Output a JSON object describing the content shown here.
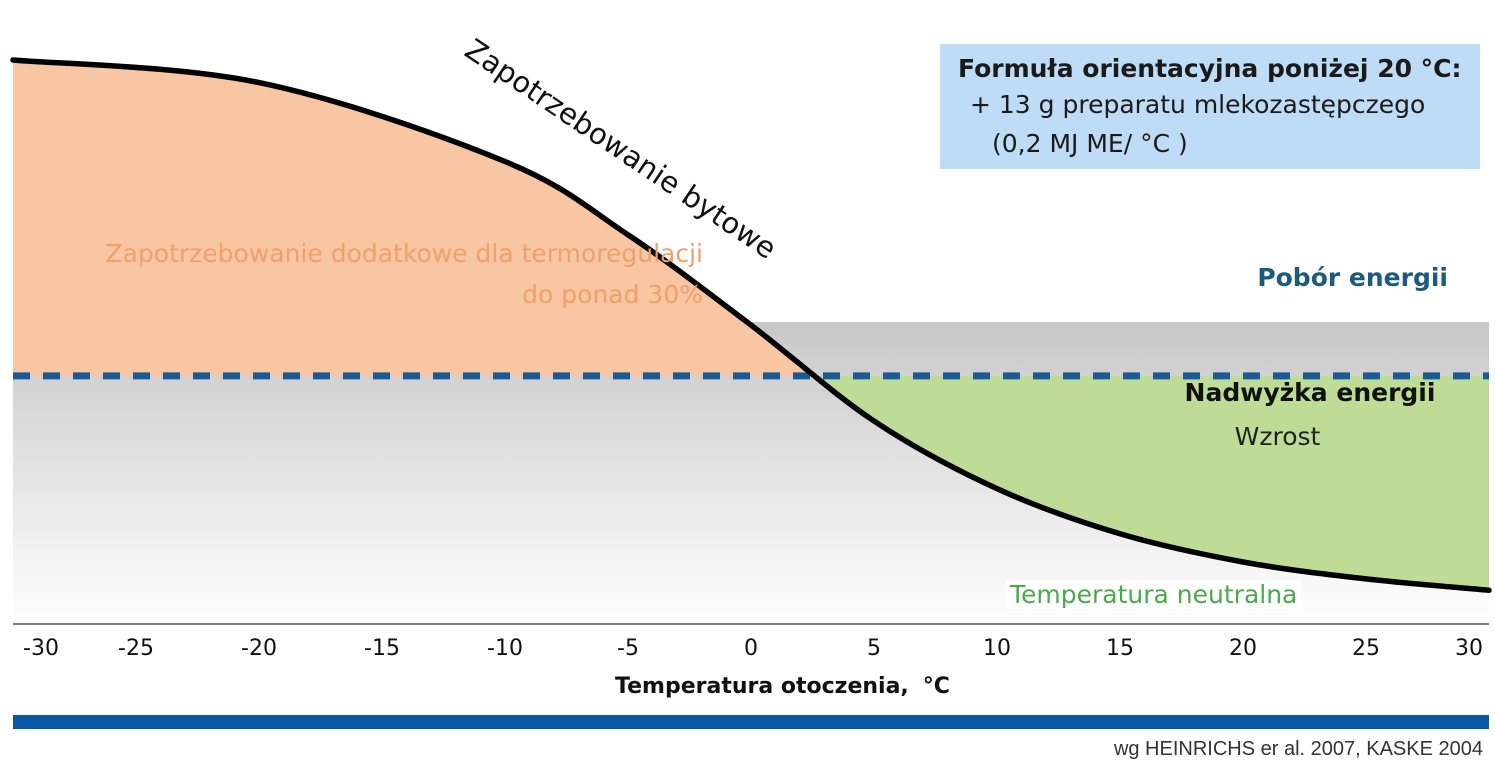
{
  "chart_data": {
    "type": "area",
    "x_range": [
      -30,
      30
    ],
    "xticks": [
      -30,
      -25,
      -20,
      -15,
      -10,
      -5,
      0,
      5,
      10,
      15,
      20,
      25,
      30
    ],
    "xlabel": "Temperatura otoczenia,",
    "xlabel_unit": "°C",
    "series": [
      {
        "name": "Zapotrzebowanie bytowe",
        "type": "line",
        "x": [
          -30,
          -20,
          -10,
          -5,
          0,
          5,
          10,
          15,
          20,
          25,
          30
        ],
        "y": [
          1.0,
          0.96,
          0.82,
          0.69,
          0.53,
          0.36,
          0.24,
          0.16,
          0.11,
          0.08,
          0.06
        ]
      },
      {
        "name": "Pobór energii",
        "type": "dashed-line",
        "y": 0.44
      }
    ],
    "regions": [
      {
        "label": "Zapotrzebowanie dodatkowe dla termoregulacji do ponad 30%",
        "color": "#f8c6a3"
      },
      {
        "label": "Nadwyżka energii",
        "color": "#bfdc96"
      }
    ],
    "colors": {
      "curve": "#000000",
      "intake": "#1c5a94",
      "axis": "#555555"
    }
  },
  "labels": {
    "curve": "Zapotrzebowanie bytowe",
    "extra_line1": "Zapotrzebowanie dodatkowe dla termoregulacji",
    "extra_line2": "do ponad 30%",
    "intake": "Pobór energii",
    "surplus": "Nadwyżka energii",
    "growth": "Wzrost",
    "neutral": "Temperatura neutralna"
  },
  "info_box": {
    "title": "Formuła orientacyjna poniżej 20 °C:",
    "line1": "+ 13 g preparatu mlekozastępczego",
    "line2": "(0,2 MJ ME/ °C )"
  },
  "source": "wg HEINRICHS er al. 2007, KASKE 2004"
}
